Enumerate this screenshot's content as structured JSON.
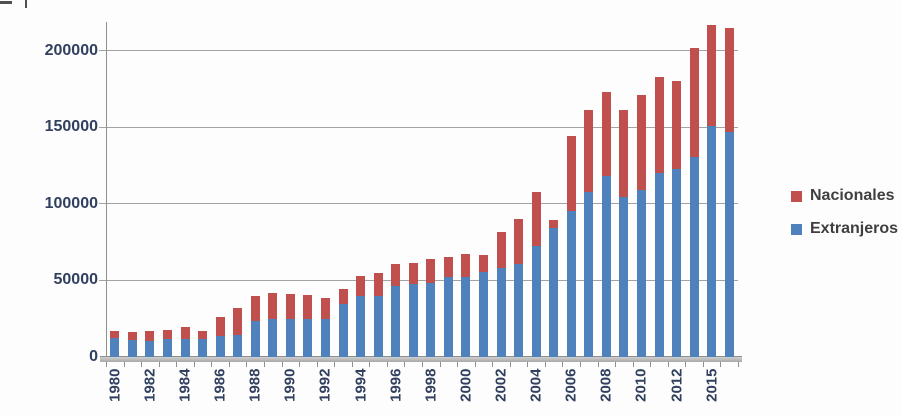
{
  "colors": {
    "extranjeros": "#4F81BD",
    "nacionales": "#C0504D",
    "gridline": "#A3A3A3",
    "axis_line": "#8F8F8F",
    "axis_label_text": "#31405F",
    "legend_text": "#3F3F3F",
    "background": "#FDFDFD"
  },
  "legend": {
    "items": [
      {
        "label": "Nacionales",
        "color": "#C0504D"
      },
      {
        "label": "Extranjeros",
        "color": "#4F81BD"
      }
    ]
  },
  "chart_data": {
    "type": "bar",
    "stacked": true,
    "title": "",
    "xlabel": "",
    "ylabel": "",
    "grid": true,
    "legend_position": "right",
    "x": [
      1980,
      1981,
      1982,
      1983,
      1984,
      1985,
      1986,
      1987,
      1988,
      1989,
      1990,
      1991,
      1992,
      1993,
      1994,
      1995,
      1996,
      1997,
      1998,
      1999,
      2000,
      2001,
      2002,
      2003,
      2004,
      2005,
      2006,
      2007,
      2008,
      2009,
      2010,
      2011,
      2012,
      2013,
      2014,
      2015
    ],
    "x_tick_labels": [
      "1980",
      "1982",
      "1984",
      "1986",
      "1988",
      "1990",
      "1992",
      "1994",
      "1996",
      "1998",
      "2000",
      "2002",
      "2004",
      "2006",
      "2008",
      "2010",
      "2012",
      "2015"
    ],
    "y_ticks": [
      0,
      50000,
      100000,
      150000,
      200000
    ],
    "y_tick_labels": [
      "0",
      "50000",
      "100000",
      "150000",
      "200000"
    ],
    "ylim": [
      0,
      218700
    ],
    "series": [
      {
        "name": "Nacionales",
        "color": "#C0504D",
        "values": [
          4500,
          5000,
          6500,
          6000,
          7500,
          5500,
          12000,
          17500,
          16500,
          17000,
          16500,
          16000,
          13500,
          10000,
          13500,
          15500,
          14500,
          14000,
          15500,
          13000,
          15000,
          11000,
          23500,
          29500,
          35000,
          5000,
          49000,
          53000,
          55000,
          56500,
          62000,
          63000,
          57500,
          71000,
          66000,
          68000
        ]
      },
      {
        "name": "Extranjeros",
        "color": "#4F81BD",
        "values": [
          12500,
          11000,
          10500,
          11500,
          12000,
          11500,
          14000,
          14500,
          23500,
          24500,
          24500,
          24500,
          25000,
          34500,
          39500,
          39500,
          46500,
          47500,
          48500,
          52500,
          52500,
          55500,
          58000,
          60500,
          72500,
          84500,
          95000,
          108000,
          118000,
          104500,
          109000,
          120000,
          122500,
          130500,
          151000,
          147000
        ]
      }
    ]
  }
}
